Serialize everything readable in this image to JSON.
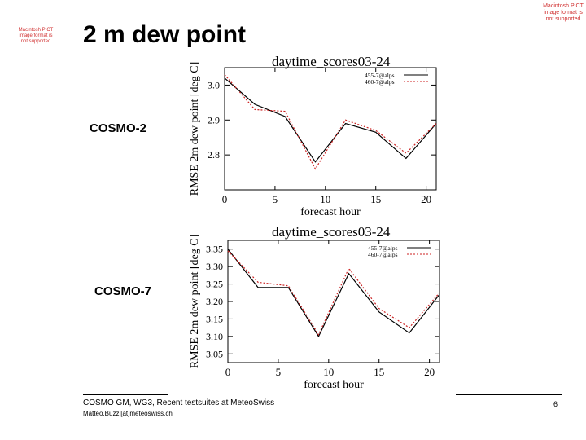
{
  "slide": {
    "title": "2 m dew point",
    "unsupported_image_note_left": "Macintosh PICT image format is not supported",
    "unsupported_image_note_right": "Macintosh PICT image format is not supported",
    "footer_text": "COSMO GM, WG3, Recent testsuites at MeteoSwiss",
    "footer_email": "Matteo.Buzzi[at]meteoswiss.ch",
    "page_number": "6",
    "models": [
      "COSMO-2",
      "COSMO-7"
    ]
  },
  "chart_data": [
    {
      "type": "line",
      "title": "daytime_scores03-24",
      "xlabel": "forecast hour",
      "ylabel": "RMSE 2m dew point [deg C]",
      "xlim": [
        0,
        21
      ],
      "ylim": [
        2.7,
        3.05
      ],
      "xticks": [
        0,
        5,
        10,
        15,
        20
      ],
      "xtick_labels": [
        "0",
        "5",
        "10",
        "15",
        "20"
      ],
      "yticks": [
        2.8,
        2.9,
        3.0
      ],
      "ytick_labels": [
        "2.8",
        "2.9",
        "3.0"
      ],
      "legend_position": "top-right",
      "series": [
        {
          "name": "455-7@alps",
          "style": "solid",
          "color": "#000000",
          "x": [
            0,
            3,
            6,
            9,
            12,
            15,
            18,
            21
          ],
          "values": [
            3.02,
            2.945,
            2.91,
            2.78,
            2.89,
            2.865,
            2.79,
            2.89
          ]
        },
        {
          "name": "460-7@alps",
          "style": "dotted",
          "color": "#cc2222",
          "x": [
            0,
            3,
            6,
            9,
            12,
            15,
            18,
            21
          ],
          "values": [
            3.03,
            2.93,
            2.925,
            2.76,
            2.9,
            2.87,
            2.805,
            2.89
          ]
        }
      ]
    },
    {
      "type": "line",
      "title": "daytime_scores03-24",
      "xlabel": "forecast hour",
      "ylabel": "RMSE 2m dew point [deg C]",
      "xlim": [
        0,
        21
      ],
      "ylim": [
        3.025,
        3.375
      ],
      "xticks": [
        0,
        5,
        10,
        15,
        20
      ],
      "xtick_labels": [
        "0",
        "5",
        "10",
        "15",
        "20"
      ],
      "yticks": [
        3.05,
        3.1,
        3.15,
        3.2,
        3.25,
        3.3,
        3.35
      ],
      "ytick_labels": [
        "3.05",
        "3.10",
        "3.15",
        "3.20",
        "3.25",
        "3.30",
        "3.35"
      ],
      "legend_position": "top-right",
      "series": [
        {
          "name": "455-7@alps",
          "style": "solid",
          "color": "#000000",
          "x": [
            0,
            3,
            6,
            9,
            12,
            15,
            18,
            21
          ],
          "values": [
            3.35,
            3.24,
            3.24,
            3.1,
            3.28,
            3.17,
            3.11,
            3.22
          ]
        },
        {
          "name": "460-7@alps",
          "style": "dotted",
          "color": "#cc2222",
          "x": [
            0,
            3,
            6,
            9,
            12,
            15,
            18,
            21
          ],
          "values": [
            3.345,
            3.255,
            3.245,
            3.105,
            3.295,
            3.18,
            3.125,
            3.225
          ]
        }
      ]
    }
  ]
}
